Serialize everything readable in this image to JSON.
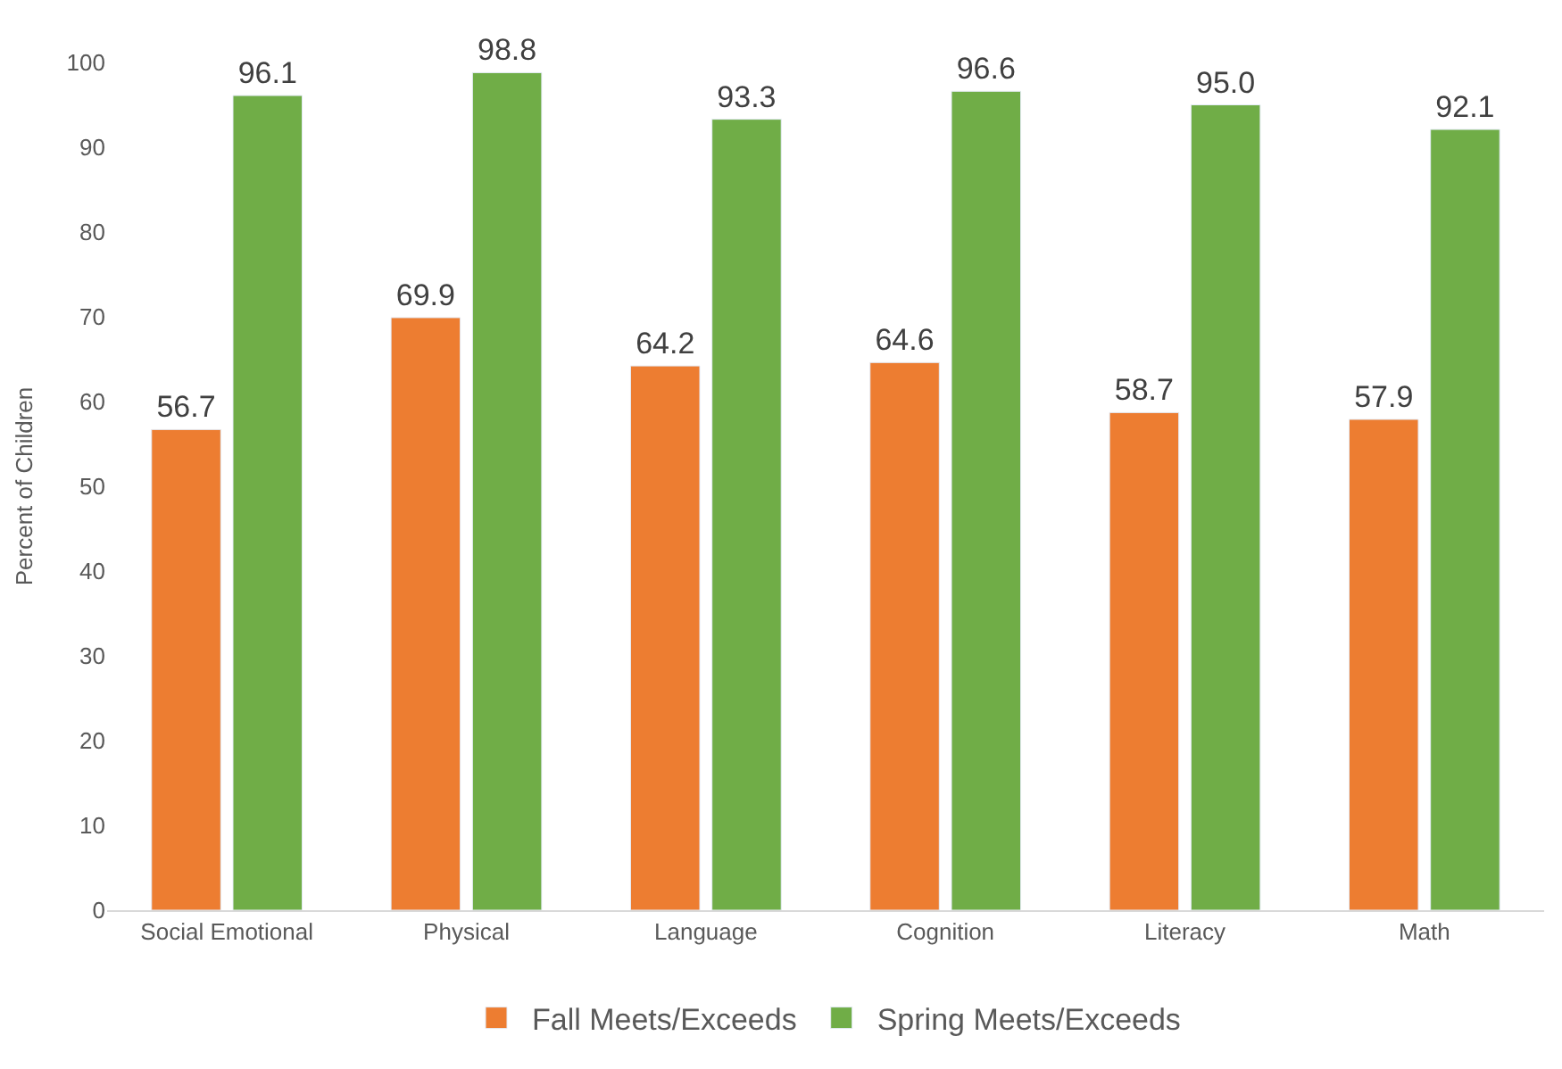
{
  "chart_data": {
    "type": "bar",
    "ylabel": "Percent of Children",
    "categories": [
      "Social Emotional",
      "Physical",
      "Language",
      "Cognition",
      "Literacy",
      "Math"
    ],
    "series": [
      {
        "name": "Fall Meets/Exceeds",
        "color": "#ed7d31",
        "values": [
          56.7,
          69.9,
          64.2,
          64.6,
          58.7,
          57.9
        ],
        "value_labels": [
          "56.7",
          "69.9",
          "64.2",
          "64.6",
          "58.7",
          "57.9"
        ]
      },
      {
        "name": "Spring Meets/Exceeds",
        "color": "#70ad47",
        "values": [
          96.1,
          98.8,
          93.3,
          96.6,
          95.0,
          92.1
        ],
        "value_labels": [
          "96.1",
          "98.8",
          "93.3",
          "96.6",
          "95.0",
          "92.1"
        ]
      }
    ],
    "ylim": [
      0,
      100
    ],
    "yticks": [
      0,
      10,
      20,
      30,
      40,
      50,
      60,
      70,
      80,
      90,
      100
    ],
    "legend": "bottom"
  }
}
